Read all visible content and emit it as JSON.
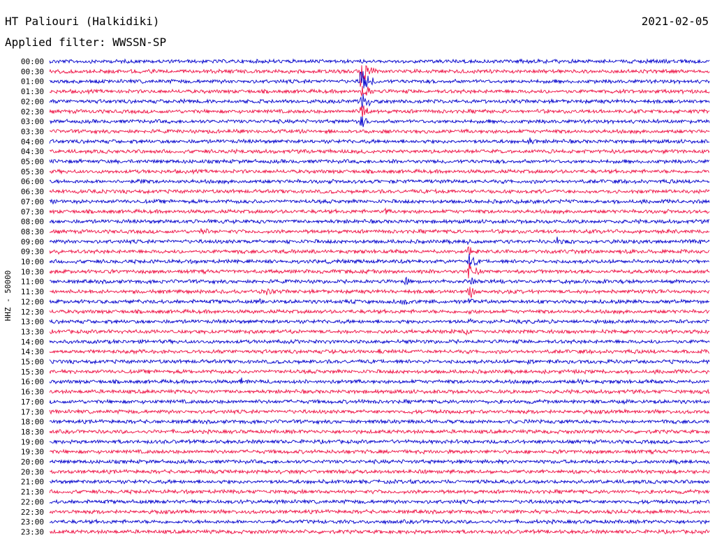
{
  "header": {
    "station": "HT Paliouri (Halkidiki)",
    "filter": "Applied filter: WWSSN-SP",
    "date": "2021-02-05"
  },
  "chart_data": {
    "type": "line",
    "title": "HT Paliouri (Halkidiki)",
    "subtitle": "Applied filter: WWSSN-SP",
    "ylabel": "HHZ - 50000",
    "xlabel": "",
    "series_colors": [
      "#0000cc",
      "#ee1144"
    ],
    "rows": [
      {
        "label": "00:00",
        "events": [
          {
            "t": 0.472,
            "a": 0.6
          }
        ]
      },
      {
        "label": "00:30",
        "events": [
          {
            "t": 0.472,
            "a": 6.0
          },
          {
            "t": 0.14,
            "a": 0.2
          },
          {
            "t": 0.84,
            "a": 0.15
          }
        ]
      },
      {
        "label": "01:00",
        "events": [
          {
            "t": 0.472,
            "a": 5.0
          }
        ]
      },
      {
        "label": "01:30",
        "events": [
          {
            "t": 0.472,
            "a": 4.0
          }
        ]
      },
      {
        "label": "02:00",
        "events": [
          {
            "t": 0.472,
            "a": 3.5
          },
          {
            "t": 0.19,
            "a": 0.2
          }
        ]
      },
      {
        "label": "02:30",
        "events": [
          {
            "t": 0.472,
            "a": 3.0
          },
          {
            "t": 0.67,
            "a": 0.3
          },
          {
            "t": 0.9,
            "a": 0.3
          }
        ]
      },
      {
        "label": "03:00",
        "events": [
          {
            "t": 0.472,
            "a": 2.0
          }
        ]
      },
      {
        "label": "03:30",
        "events": [
          {
            "t": 0.63,
            "a": 0.25
          }
        ]
      },
      {
        "label": "04:00",
        "events": [
          {
            "t": 0.725,
            "a": 1.4
          }
        ]
      },
      {
        "label": "04:30",
        "events": [
          {
            "t": 0.265,
            "a": 0.9
          },
          {
            "t": 0.425,
            "a": 0.7
          }
        ]
      },
      {
        "label": "05:00",
        "events": [
          {
            "t": 0.52,
            "a": 0.4
          }
        ]
      },
      {
        "label": "05:30",
        "events": []
      },
      {
        "label": "06:00",
        "events": [
          {
            "t": 0.14,
            "a": 1.1
          },
          {
            "t": 0.655,
            "a": 0.8
          }
        ]
      },
      {
        "label": "06:30",
        "events": [
          {
            "t": 0.01,
            "a": 0.5
          },
          {
            "t": 0.585,
            "a": 0.8
          }
        ]
      },
      {
        "label": "07:00",
        "events": [
          {
            "t": 0.005,
            "a": 0.8
          },
          {
            "t": 0.705,
            "a": 1.2
          }
        ]
      },
      {
        "label": "07:30",
        "events": [
          {
            "t": 0.51,
            "a": 1.0
          }
        ]
      },
      {
        "label": "08:00",
        "events": [
          {
            "t": 0.17,
            "a": 0.3
          }
        ]
      },
      {
        "label": "08:30",
        "events": [
          {
            "t": 0.23,
            "a": 1.6
          },
          {
            "t": 0.62,
            "a": 0.6
          }
        ]
      },
      {
        "label": "09:00",
        "events": [
          {
            "t": 0.36,
            "a": 1.3
          },
          {
            "t": 0.77,
            "a": 1.4
          },
          {
            "t": 0.985,
            "a": 1.2
          },
          {
            "t": 0.635,
            "a": 1.2
          }
        ]
      },
      {
        "label": "09:30",
        "events": [
          {
            "t": 0.01,
            "a": 1.2
          },
          {
            "t": 0.285,
            "a": 0.8
          },
          {
            "t": 0.635,
            "a": 2.5
          }
        ]
      },
      {
        "label": "10:00",
        "events": [
          {
            "t": 0.98,
            "a": 0.8
          },
          {
            "t": 0.635,
            "a": 3.0
          }
        ]
      },
      {
        "label": "10:30",
        "events": [
          {
            "t": 0.09,
            "a": 0.3
          },
          {
            "t": 0.94,
            "a": 0.3
          },
          {
            "t": 0.635,
            "a": 3.5
          }
        ]
      },
      {
        "label": "11:00",
        "events": [
          {
            "t": 0.54,
            "a": 1.5
          },
          {
            "t": 0.64,
            "a": 1.6
          },
          {
            "t": 0.685,
            "a": 1.0
          },
          {
            "t": 0.41,
            "a": 0.4
          }
        ]
      },
      {
        "label": "11:30",
        "events": [
          {
            "t": 0.03,
            "a": 0.6
          },
          {
            "t": 0.33,
            "a": 1.4
          },
          {
            "t": 0.635,
            "a": 2.5
          }
        ]
      },
      {
        "label": "12:00",
        "events": [
          {
            "t": 0.535,
            "a": 1.6
          },
          {
            "t": 0.32,
            "a": 0.9
          },
          {
            "t": 0.76,
            "a": 0.4
          },
          {
            "t": 0.635,
            "a": 2.0
          }
        ]
      },
      {
        "label": "12:30",
        "events": [
          {
            "t": 0.635,
            "a": 1.5
          }
        ]
      },
      {
        "label": "13:00",
        "events": [
          {
            "t": 0.635,
            "a": 1.0
          }
        ]
      },
      {
        "label": "13:30",
        "events": [
          {
            "t": 0.625,
            "a": 1.8
          },
          {
            "t": 0.09,
            "a": 0.6
          },
          {
            "t": 0.15,
            "a": 0.5
          },
          {
            "t": 0.38,
            "a": 0.6
          },
          {
            "t": 0.47,
            "a": 0.4
          }
        ]
      },
      {
        "label": "14:00",
        "events": [
          {
            "t": 0.32,
            "a": 0.3
          }
        ]
      },
      {
        "label": "14:30",
        "events": [
          {
            "t": 0.43,
            "a": 1.1
          },
          {
            "t": 0.5,
            "a": 1.0
          },
          {
            "t": 0.98,
            "a": 0.5
          }
        ]
      },
      {
        "label": "15:00",
        "events": [
          {
            "t": 0.003,
            "a": 0.8
          },
          {
            "t": 0.725,
            "a": 1.0
          }
        ]
      },
      {
        "label": "15:30",
        "events": [
          {
            "t": 0.035,
            "a": 1.0
          },
          {
            "t": 0.855,
            "a": 0.4
          }
        ]
      },
      {
        "label": "16:00",
        "events": [
          {
            "t": 0.29,
            "a": 1.3
          },
          {
            "t": 0.8,
            "a": 2.0
          }
        ]
      },
      {
        "label": "16:30",
        "events": [
          {
            "t": 0.2,
            "a": 0.4
          }
        ]
      },
      {
        "label": "17:00",
        "events": [
          {
            "t": 0.475,
            "a": 0.8
          }
        ]
      },
      {
        "label": "17:30",
        "events": []
      },
      {
        "label": "18:00",
        "events": [
          {
            "t": 0.48,
            "a": 0.3
          },
          {
            "t": 0.855,
            "a": 0.2
          }
        ]
      },
      {
        "label": "18:30",
        "events": []
      },
      {
        "label": "19:00",
        "events": []
      },
      {
        "label": "19:30",
        "events": [
          {
            "t": 0.755,
            "a": 0.5
          }
        ]
      },
      {
        "label": "20:00",
        "events": [
          {
            "t": 0.93,
            "a": 0.6
          }
        ]
      },
      {
        "label": "20:30",
        "events": [
          {
            "t": 0.215,
            "a": 0.4
          },
          {
            "t": 0.595,
            "a": 0.4
          },
          {
            "t": 0.46,
            "a": 0.3
          }
        ]
      },
      {
        "label": "21:00",
        "events": []
      },
      {
        "label": "21:30",
        "events": [
          {
            "t": 0.285,
            "a": 0.3
          }
        ]
      },
      {
        "label": "22:00",
        "events": []
      },
      {
        "label": "22:30",
        "events": [
          {
            "t": 0.69,
            "a": 0.2
          }
        ]
      },
      {
        "label": "23:00",
        "events": []
      },
      {
        "label": "23:30",
        "events": []
      }
    ]
  }
}
